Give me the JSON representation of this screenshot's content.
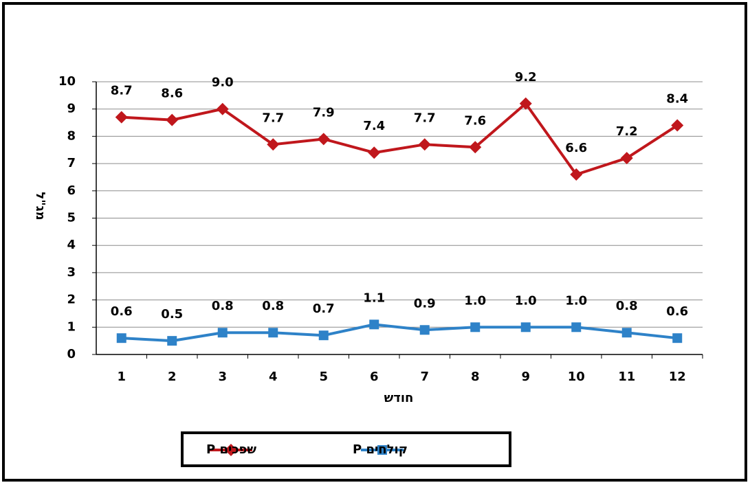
{
  "chart_data": {
    "type": "line",
    "y_label": "מג\"ל",
    "x_label": "חודש",
    "categories": [
      "1",
      "2",
      "3",
      "4",
      "5",
      "6",
      "7",
      "8",
      "9",
      "10",
      "11",
      "12"
    ],
    "series": [
      {
        "name": "שפכים P",
        "color": "#c0171c",
        "marker": "diamond",
        "values": [
          8.7,
          8.6,
          9.0,
          7.7,
          7.9,
          7.4,
          7.7,
          7.6,
          9.2,
          6.6,
          7.2,
          8.4
        ],
        "value_labels": [
          "8.7",
          "8.6",
          "9.0",
          "7.7",
          "7.9",
          "7.4",
          "7.7",
          "7.6",
          "9.2",
          "6.6",
          "7.2",
          "8.4"
        ]
      },
      {
        "name": "קולחים P",
        "color": "#2e82c8",
        "marker": "square",
        "values": [
          0.6,
          0.5,
          0.8,
          0.8,
          0.7,
          1.1,
          0.9,
          1.0,
          1.0,
          1.0,
          0.8,
          0.6
        ],
        "value_labels": [
          "0.6",
          "0.5",
          "0.8",
          "0.8",
          "0.7",
          "1.1",
          "0.9",
          "1.0",
          "1.0",
          "1.0",
          "0.8",
          "0.6"
        ]
      }
    ],
    "ylim": [
      0,
      10
    ],
    "yticks": [
      0,
      1,
      2,
      3,
      4,
      5,
      6,
      7,
      8,
      9,
      10
    ],
    "grid": true
  }
}
